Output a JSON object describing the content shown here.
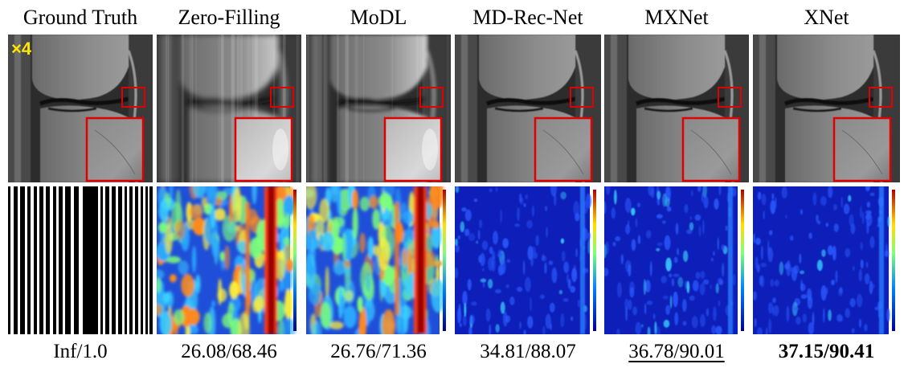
{
  "scale_label": "×4",
  "colors": {
    "zoom_box": "#e00000",
    "scale_label": "#ffe600"
  },
  "columns": [
    {
      "title": "Ground Truth",
      "metric": "Inf/1.0",
      "style": "normal",
      "recon": "gt",
      "lower": "mask"
    },
    {
      "title": "Zero-Filling",
      "metric": "26.08/68.46",
      "style": "normal",
      "recon": "zf",
      "lower": "error-high"
    },
    {
      "title": "MoDL",
      "metric": "26.76/71.36",
      "style": "normal",
      "recon": "modl",
      "lower": "error-high"
    },
    {
      "title": "MD-Rec-Net",
      "metric": "34.81/88.07",
      "style": "normal",
      "recon": "clean",
      "lower": "error-low"
    },
    {
      "title": "MXNet",
      "metric": "36.78/90.01",
      "style": "second",
      "recon": "clean",
      "lower": "error-low"
    },
    {
      "title": "XNet",
      "metric": "37.15/90.41",
      "style": "best",
      "recon": "clean",
      "lower": "error-low"
    }
  ]
}
